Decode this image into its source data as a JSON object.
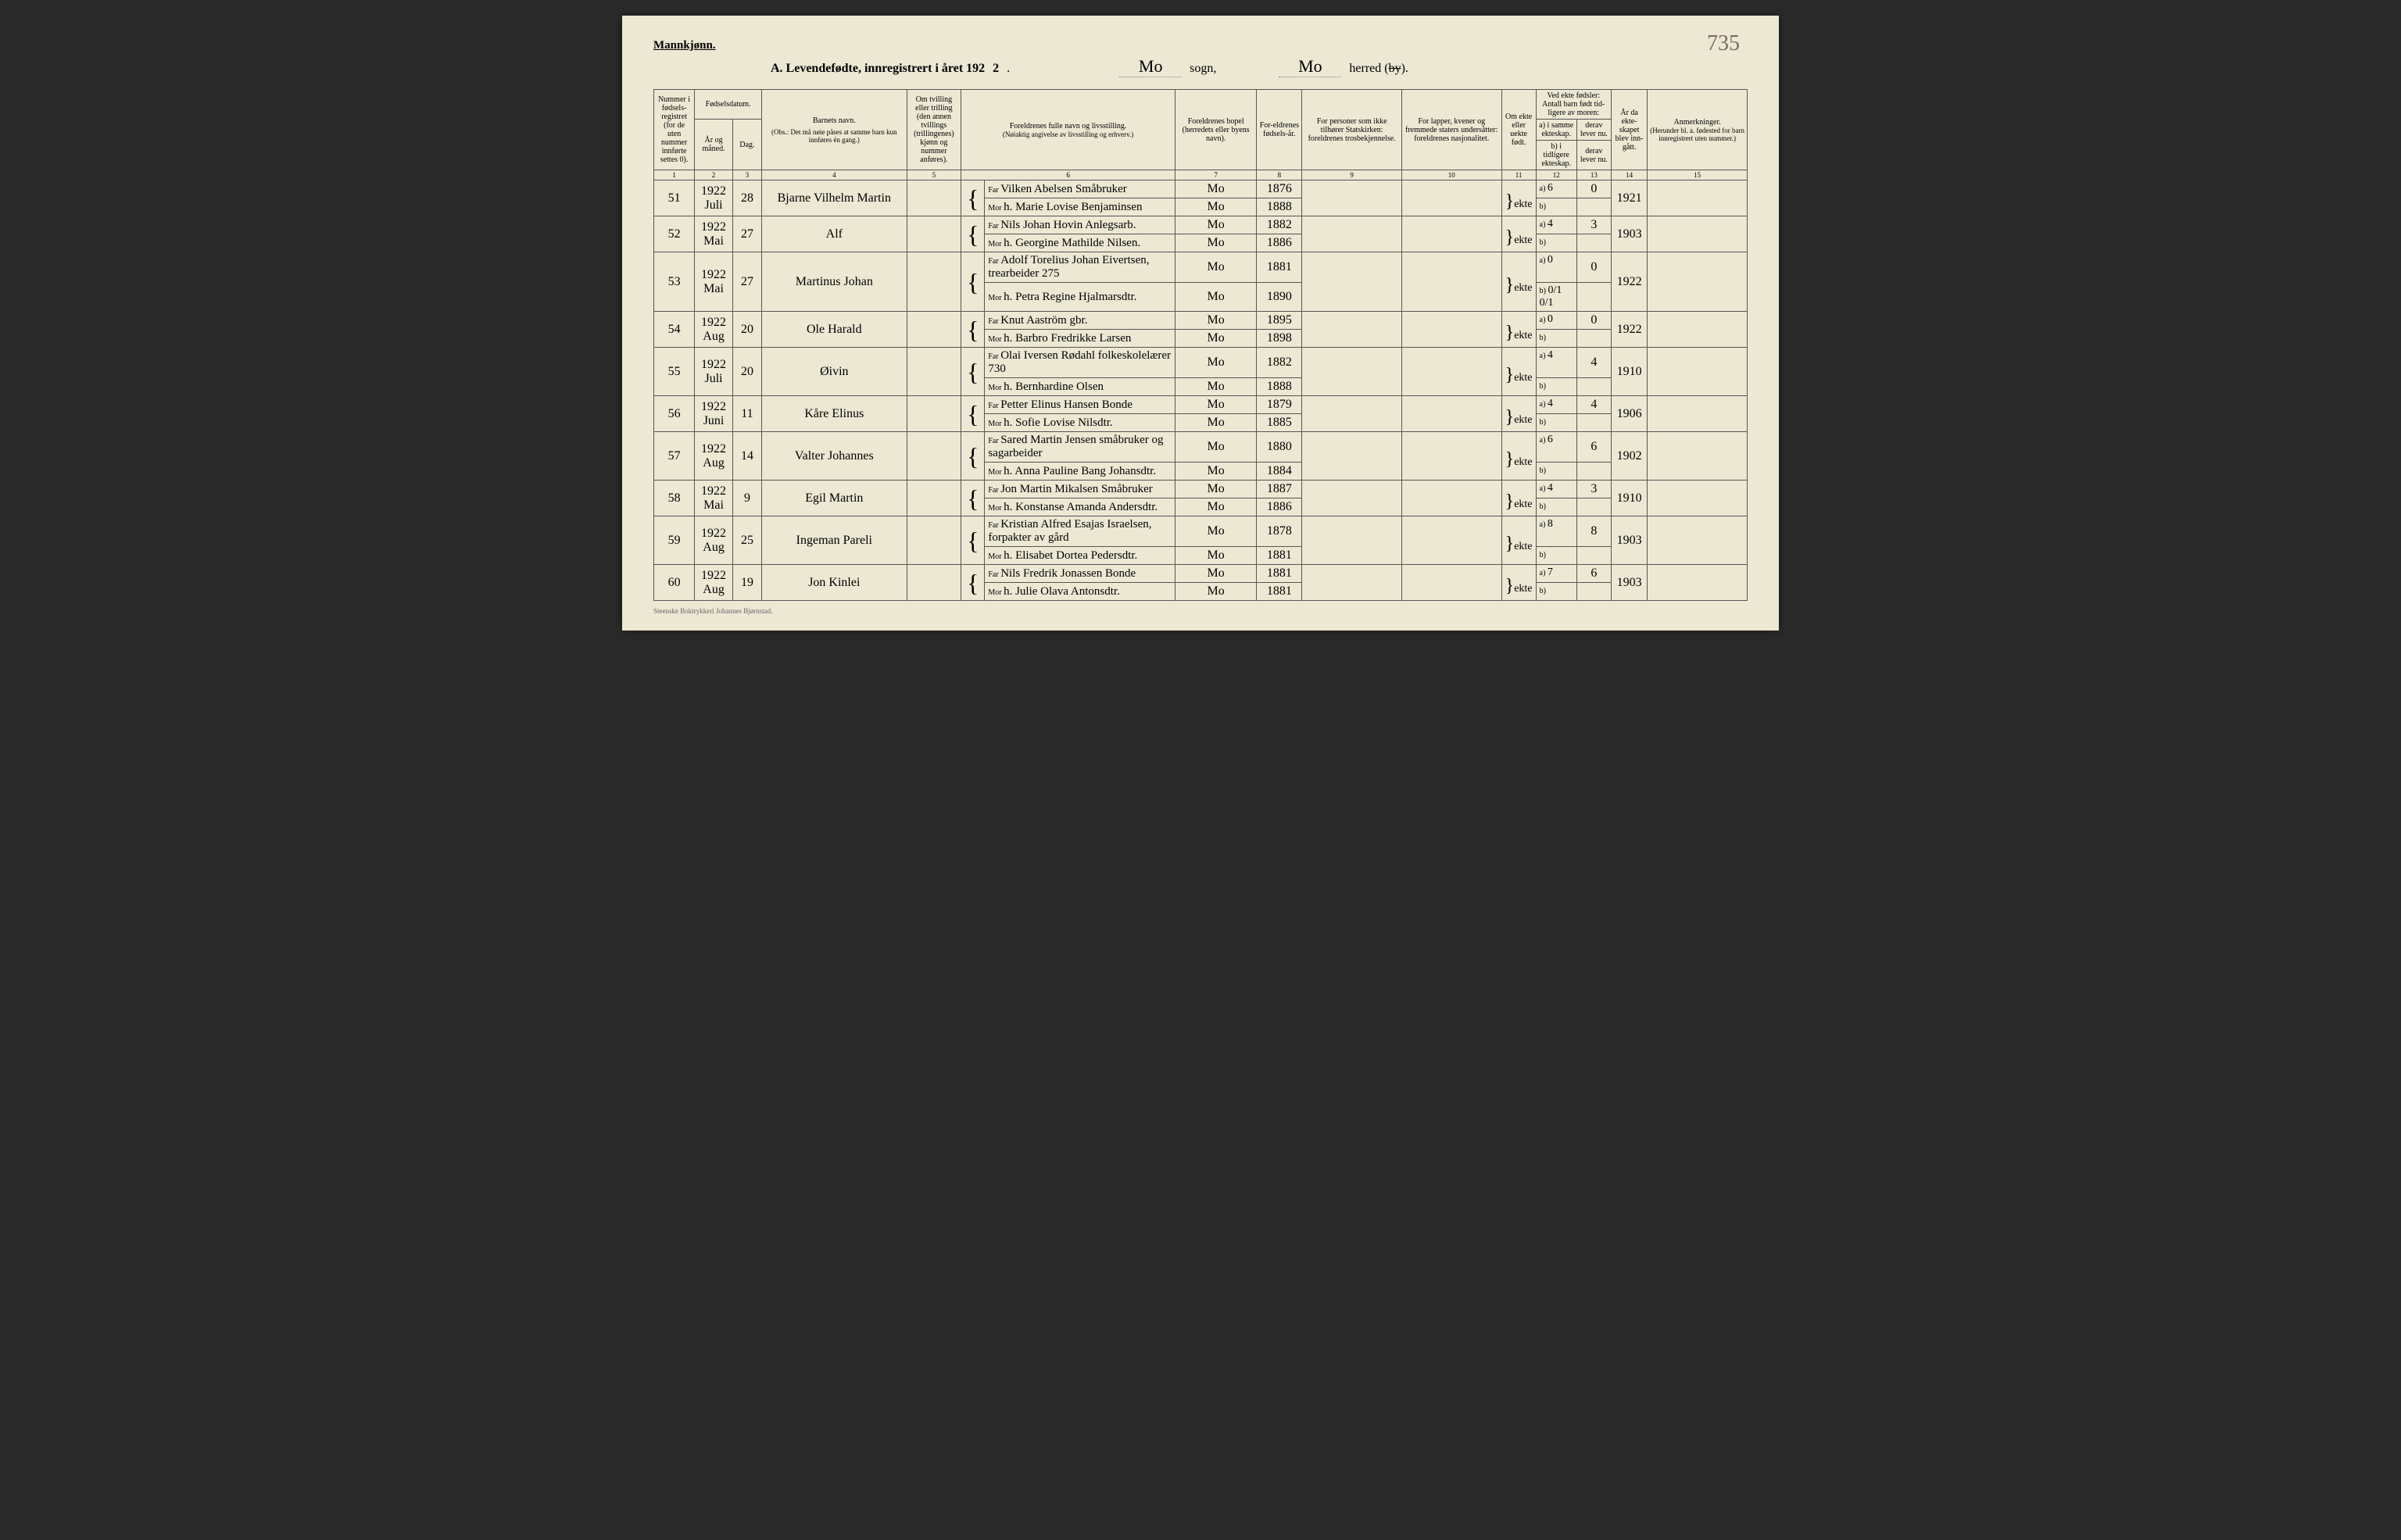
{
  "page_number_handwritten": "735",
  "header": {
    "mannkjonn": "Mannkjønn.",
    "title_prefix": "A.  Levendefødte, innregistrert i året 192",
    "year_suffix": "2",
    "sogn_value": "Mo",
    "sogn_label": "sogn,",
    "herred_value": "Mo",
    "herred_label_pre": "herred (",
    "herred_label_struck": "by",
    "herred_label_post": ")."
  },
  "columns": {
    "c1": "Nummer i fødsels-registret (for de uten nummer innførte settes 0).",
    "c2_top": "Fødselsdatum.",
    "c2a": "År og måned.",
    "c2b": "Dag.",
    "c4": "Barnets navn.",
    "c4_note": "(Obs.: Det må nøie påses at samme barn kun innføres én gang.)",
    "c5": "Om tvilling eller trilling (den annen tvillings (trillingenes) kjønn og nummer anføres).",
    "c6": "Foreldrenes fulle navn og livsstilling.",
    "c6_note": "(Nøiaktig angivelse av livsstilling og erhverv.)",
    "c7": "Foreldrenes bopel (herredets eller byens navn).",
    "c8": "For-eldrenes fødsels-år.",
    "c9": "For personer som ikke tilhører Statskirken: foreldrenes trosbekjennelse.",
    "c10": "For lapper, kvener og fremmede staters undersåtter: foreldrenes nasjonalitet.",
    "c11": "Om ekte eller uekte født.",
    "c12_top": "Ved ekte fødsler: Antall barn født tid-ligere av moren:",
    "c12a": "a) i samme ekteskap.",
    "c12b": "b) i tidligere ekteskap.",
    "c13a": "derav lever nu.",
    "c13b": "derav lever nu.",
    "c14": "År da ekte-skapet blev inn-gått.",
    "c15": "Anmerkninger.",
    "c15_note": "(Herunder bl. a. fødested for barn innregistrert uten nummer.)"
  },
  "col_nums": [
    "1",
    "2",
    "3",
    "4",
    "5",
    "6",
    "7",
    "8",
    "9",
    "10",
    "11",
    "12",
    "13",
    "14",
    "15"
  ],
  "rows": [
    {
      "num": "51",
      "year": "1922",
      "month": "Juli",
      "day": "28",
      "child": "Bjarne Vilhelm Martin",
      "far": "Vilken Abelsen Småbruker",
      "mor": "h. Marie Lovise Benjaminsen",
      "bopel_far": "Mo",
      "bopel_mor": "Mo",
      "faar_far": "1876",
      "faar_mor": "1888",
      "ekte": "ekte",
      "a": "6",
      "a_lev": "0",
      "marr": "1921"
    },
    {
      "num": "52",
      "year": "1922",
      "month": "Mai",
      "day": "27",
      "child": "Alf",
      "far": "Nils Johan Hovin Anlegsarb.",
      "mor": "h. Georgine Mathilde Nilsen.",
      "bopel_far": "Mo",
      "bopel_mor": "Mo",
      "faar_far": "1882",
      "faar_mor": "1886",
      "ekte": "ekte",
      "a": "4",
      "a_lev": "3",
      "marr": "1903"
    },
    {
      "num": "53",
      "year": "1922",
      "month": "Mai",
      "day": "27",
      "child": "Martinus Johan",
      "far": "Adolf Torelius Johan Eivertsen, trearbeider 275",
      "mor": "h. Petra Regine Hjalmarsdtr.",
      "bopel_far": "Mo",
      "bopel_mor": "Mo",
      "faar_far": "1881",
      "faar_mor": "1890",
      "ekte": "ekte",
      "a": "0",
      "a_lev": "0",
      "b_note": "0/1  0/1",
      "marr": "1922"
    },
    {
      "num": "54",
      "year": "1922",
      "month": "Aug",
      "day": "20",
      "child": "Ole Harald",
      "far": "Knut Aaström gbr.",
      "mor": "h. Barbro Fredrikke Larsen",
      "bopel_far": "Mo",
      "bopel_mor": "Mo",
      "faar_far": "1895",
      "faar_mor": "1898",
      "ekte": "ekte",
      "a": "0",
      "a_lev": "0",
      "marr": "1922"
    },
    {
      "num": "55",
      "year": "1922",
      "month": "Juli",
      "day": "20",
      "child": "Øivin",
      "far": "Olai Iversen Rødahl folkeskolelærer 730",
      "mor": "h. Bernhardine Olsen",
      "bopel_far": "Mo",
      "bopel_mor": "Mo",
      "faar_far": "1882",
      "faar_mor": "1888",
      "ekte": "ekte",
      "a": "4",
      "a_lev": "4",
      "marr": "1910"
    },
    {
      "num": "56",
      "year": "1922",
      "month": "Juni",
      "day": "11",
      "child": "Kåre Elinus",
      "far": "Petter Elinus Hansen Bonde",
      "mor": "h. Sofie Lovise Nilsdtr.",
      "bopel_far": "Mo",
      "bopel_mor": "Mo",
      "faar_far": "1879",
      "faar_mor": "1885",
      "ekte": "ekte",
      "a": "4",
      "a_lev": "4",
      "marr": "1906"
    },
    {
      "num": "57",
      "year": "1922",
      "month": "Aug",
      "day": "14",
      "child": "Valter Johannes",
      "far": "Sared Martin Jensen småbruker og sagarbeider",
      "mor": "h. Anna Pauline Bang Johansdtr.",
      "bopel_far": "Mo",
      "bopel_mor": "Mo",
      "faar_far": "1880",
      "faar_mor": "1884",
      "ekte": "ekte",
      "a": "6",
      "a_lev": "6",
      "marr": "1902"
    },
    {
      "num": "58",
      "year": "1922",
      "month": "Mai",
      "day": "9",
      "child": "Egil Martin",
      "far": "Jon Martin Mikalsen Småbruker",
      "mor": "h. Konstanse Amanda Andersdtr.",
      "bopel_far": "Mo",
      "bopel_mor": "Mo",
      "faar_far": "1887",
      "faar_mor": "1886",
      "ekte": "ekte",
      "a": "4",
      "a_lev": "3",
      "marr": "1910"
    },
    {
      "num": "59",
      "year": "1922",
      "month": "Aug",
      "day": "25",
      "child": "Ingeman Pareli",
      "far": "Kristian Alfred Esajas Israelsen, forpakter av gård",
      "mor": "h. Elisabet Dortea Pedersdtr.",
      "bopel_far": "Mo",
      "bopel_mor": "Mo",
      "faar_far": "1878",
      "faar_mor": "1881",
      "ekte": "ekte",
      "a": "8",
      "a_lev": "8",
      "marr": "1903"
    },
    {
      "num": "60",
      "year": "1922",
      "month": "Aug",
      "day": "19",
      "child": "Jon Kinlei",
      "far": "Nils Fredrik Jonassen Bonde",
      "mor": "h. Julie Olava Antonsdtr.",
      "bopel_far": "Mo",
      "bopel_mor": "Mo",
      "faar_far": "1881",
      "faar_mor": "1881",
      "ekte": "ekte",
      "a": "7",
      "a_lev": "6",
      "marr": "1903"
    }
  ],
  "footer": "Steenske Boktrykkeri Johannes Bjørnstad.",
  "labels": {
    "far": "Far",
    "mor": "Mor",
    "a": "a)",
    "b": "b)"
  },
  "styling": {
    "paper_bg": "#ece8d4",
    "ink": "#2a2a2a",
    "handwriting_color": "#3a3a3a",
    "border_color": "#555555",
    "font_print": "Georgia, 'Times New Roman', serif",
    "font_script": "cursive",
    "header_font_size_pt": 12,
    "body_font_size_pt": 10,
    "script_font_size_pt": 15
  }
}
